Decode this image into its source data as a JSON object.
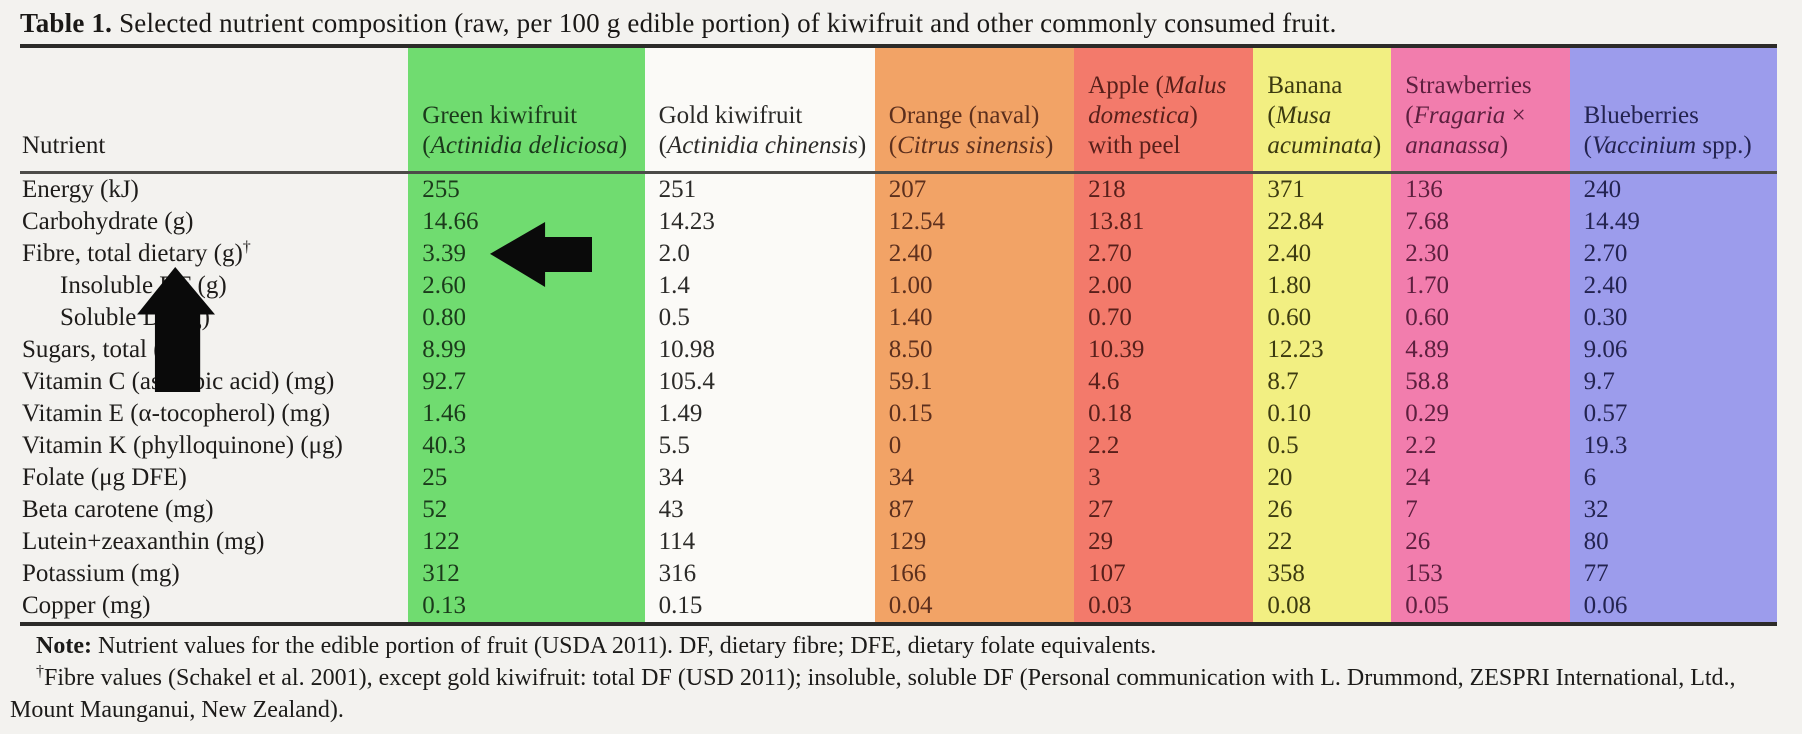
{
  "title": {
    "label": "Table 1.",
    "text": "Selected nutrient composition (raw, per 100 g edible portion) of kiwifruit and other commonly consumed fruit."
  },
  "table": {
    "nutrient_header": "Nutrient",
    "columns": [
      {
        "id": "green-kiwifruit",
        "color": "#70dc70",
        "text_color": "#1b3a1b",
        "lines": [
          [
            {
              "t": "Green kiwifruit"
            }
          ],
          [
            {
              "t": "("
            },
            {
              "t": "Actinidia deliciosa",
              "i": true
            },
            {
              "t": ")"
            }
          ]
        ]
      },
      {
        "id": "gold-kiwifruit",
        "color": "#fbfaf7",
        "text_color": "#2b2a28",
        "lines": [
          [
            {
              "t": "Gold kiwifruit"
            }
          ],
          [
            {
              "t": "("
            },
            {
              "t": "Actinidia chinensis",
              "i": true
            },
            {
              "t": ")"
            }
          ]
        ]
      },
      {
        "id": "orange-naval",
        "color": "#f2a366",
        "text_color": "#5c2f1d",
        "lines": [
          [
            {
              "t": "Orange (naval)"
            }
          ],
          [
            {
              "t": "("
            },
            {
              "t": "Citrus sinensis",
              "i": true
            },
            {
              "t": ")"
            }
          ]
        ]
      },
      {
        "id": "apple",
        "color": "#f37a6b",
        "text_color": "#571f1a",
        "lines": [
          [
            {
              "t": "Apple ("
            },
            {
              "t": "Malus",
              "i": true
            }
          ],
          [
            {
              "t": "domestica",
              "i": true
            },
            {
              "t": ")"
            }
          ],
          [
            {
              "t": "with peel"
            }
          ]
        ]
      },
      {
        "id": "banana",
        "color": "#f2ef82",
        "text_color": "#3c3a10",
        "lines": [
          [
            {
              "t": "Banana"
            }
          ],
          [
            {
              "t": "("
            },
            {
              "t": "Musa",
              "i": true
            }
          ],
          [
            {
              "t": "acuminata",
              "i": true
            },
            {
              "t": ")"
            }
          ]
        ]
      },
      {
        "id": "strawberries",
        "color": "#f27dad",
        "text_color": "#5c1f3e",
        "lines": [
          [
            {
              "t": "Strawberries"
            }
          ],
          [
            {
              "t": "("
            },
            {
              "t": "Fragaria",
              "i": true
            },
            {
              "t": " ×"
            }
          ],
          [
            {
              "t": "ananassa",
              "i": true
            },
            {
              "t": ")"
            }
          ]
        ]
      },
      {
        "id": "blueberries",
        "color": "#9c9cec",
        "text_color": "#232350",
        "lines": [
          [
            {
              "t": "Blueberries"
            }
          ],
          [
            {
              "t": "("
            },
            {
              "t": "Vaccinium",
              "i": true
            },
            {
              "t": " spp.)"
            }
          ]
        ]
      }
    ],
    "rows": [
      {
        "label": "Energy (kJ)",
        "values": [
          "255",
          "251",
          "207",
          "218",
          "371",
          "136",
          "240"
        ]
      },
      {
        "label": "Carbohydrate (g)",
        "values": [
          "14.66",
          "14.23",
          "12.54",
          "13.81",
          "22.84",
          "7.68",
          "14.49"
        ]
      },
      {
        "label": "Fibre, total dietary (g)",
        "sup": "†",
        "values": [
          "3.39",
          "2.0",
          "2.40",
          "2.70",
          "2.40",
          "2.30",
          "2.70"
        ]
      },
      {
        "label": "Insoluble DF (g)",
        "indent": true,
        "values": [
          "2.60",
          "1.4",
          "1.00",
          "2.00",
          "1.80",
          "1.70",
          "2.40"
        ]
      },
      {
        "label": "Soluble DF (g)",
        "indent": true,
        "values": [
          "0.80",
          "0.5",
          "1.40",
          "0.70",
          "0.60",
          "0.60",
          "0.30"
        ]
      },
      {
        "label": "Sugars, total (g)",
        "values": [
          "8.99",
          "10.98",
          "8.50",
          "10.39",
          "12.23",
          "4.89",
          "9.06"
        ]
      },
      {
        "label": "Vitamin C (ascorbic acid) (mg)",
        "values": [
          "92.7",
          "105.4",
          "59.1",
          "4.6",
          "8.7",
          "58.8",
          "9.7"
        ]
      },
      {
        "label": "Vitamin E (α-tocopherol) (mg)",
        "values": [
          "1.46",
          "1.49",
          "0.15",
          "0.18",
          "0.10",
          "0.29",
          "0.57"
        ]
      },
      {
        "label": "Vitamin K (phylloquinone) (μg)",
        "values": [
          "40.3",
          "5.5",
          "0",
          "2.2",
          "0.5",
          "2.2",
          "19.3"
        ]
      },
      {
        "label": "Folate (μg DFE)",
        "values": [
          "25",
          "34",
          "34",
          "3",
          "20",
          "24",
          "6"
        ]
      },
      {
        "label": "Beta carotene (mg)",
        "values": [
          "52",
          "43",
          "87",
          "27",
          "26",
          "7",
          "32"
        ]
      },
      {
        "label": "Lutein+zeaxanthin (mg)",
        "values": [
          "122",
          "114",
          "129",
          "29",
          "22",
          "26",
          "80"
        ]
      },
      {
        "label": "Potassium (mg)",
        "values": [
          "312",
          "316",
          "166",
          "107",
          "358",
          "153",
          "77"
        ]
      },
      {
        "label": "Copper (mg)",
        "values": [
          "0.13",
          "0.15",
          "0.04",
          "0.03",
          "0.08",
          "0.05",
          "0.06"
        ]
      }
    ]
  },
  "notes": {
    "note_label": "Note:",
    "note_text": " Nutrient values for the edible portion of fruit (USDA 2011). DF, dietary fibre; DFE, dietary folate equivalents.",
    "footnote_sup": "†",
    "footnote_text": "Fibre values (Schakel et al. 2001), except gold kiwifruit: total DF (USD 2011); insoluble, soluble DF (Personal communication with L. Drummond, ZESPRI International, Ltd., Mount Maunganui, New Zealand)."
  },
  "annotations": {
    "arrow_up": "black up-pointing arrow over nutrient label column",
    "arrow_left": "black left-pointing arrow indicating green kiwifruit fibre value 3.39"
  }
}
